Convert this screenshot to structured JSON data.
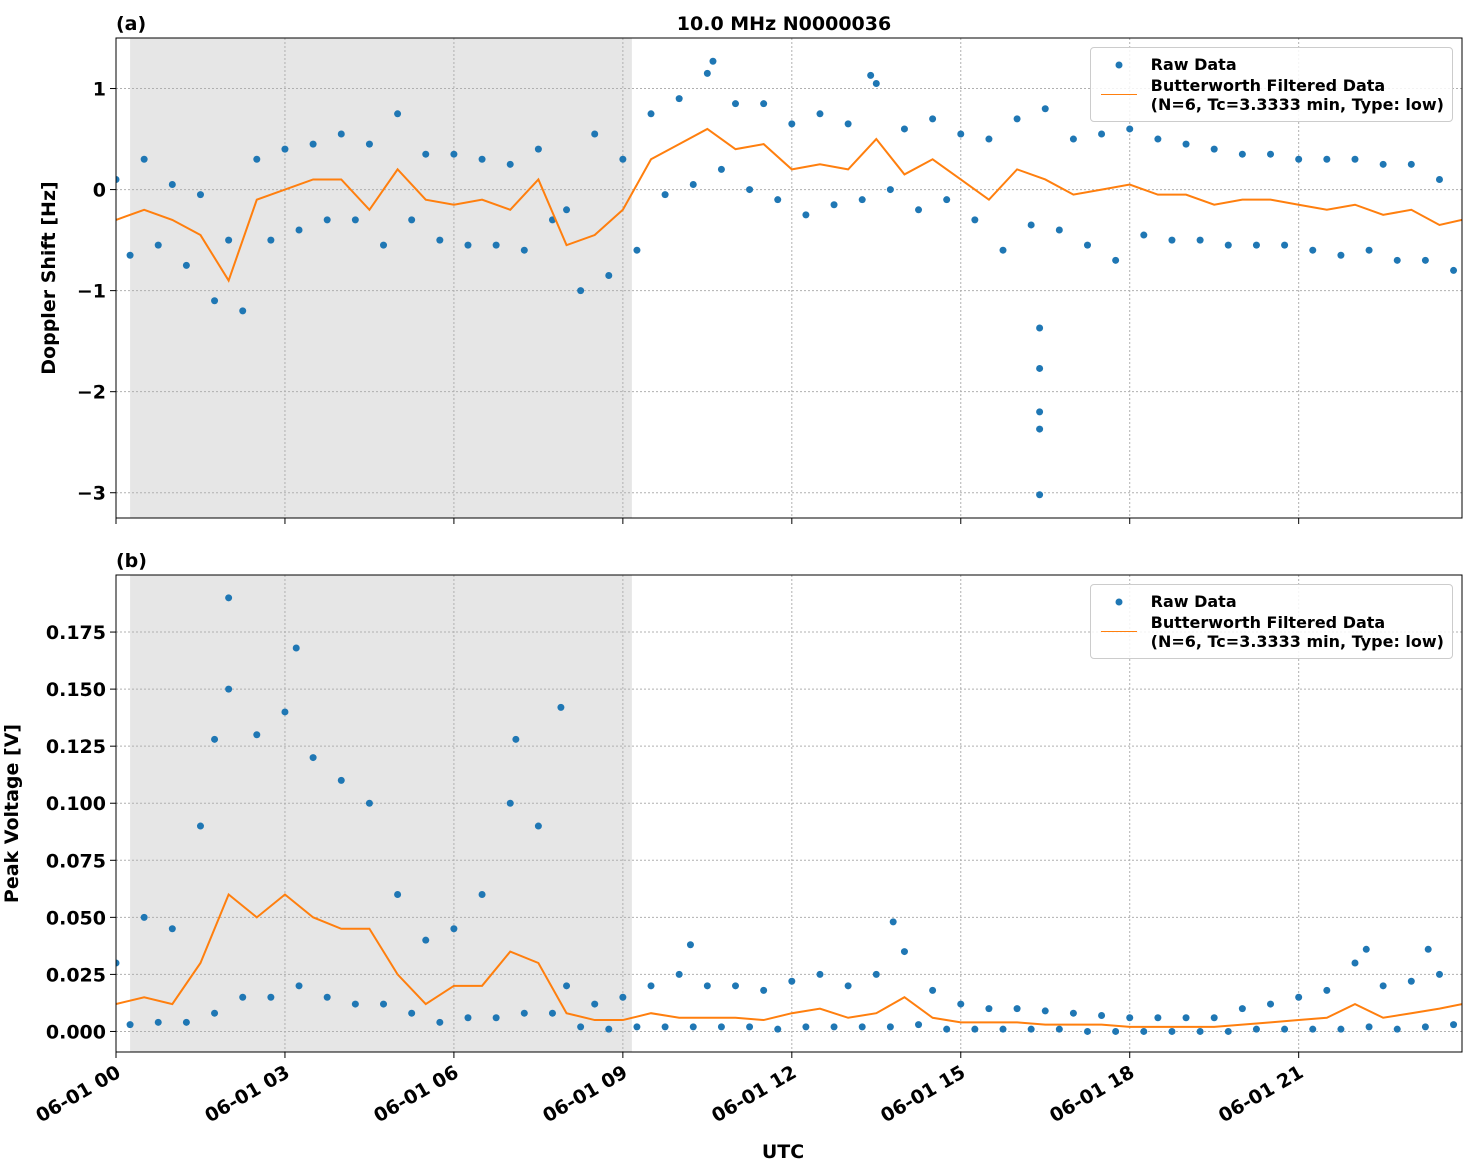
{
  "chart_data": [
    {
      "type": "line",
      "title": "10.0 MHz N0000036",
      "panel_label": "(a)",
      "ylabel": "Doppler Shift [Hz]",
      "xlim": [
        0,
        23.9
      ],
      "xticks": [
        0,
        3,
        6,
        9,
        12,
        15,
        18,
        21
      ],
      "xtick_labels_shown": false,
      "ylim": [
        -3.25,
        1.5
      ],
      "yticks": [
        {
          "value": -3,
          "label": "−3"
        },
        {
          "value": -2,
          "label": "−2"
        },
        {
          "value": -1,
          "label": "−1"
        },
        0,
        1
      ],
      "grid": true,
      "shaded_span": [
        0.25,
        9.16
      ],
      "shade_color": "#e6e6e6",
      "legend": "upper right",
      "series": [
        {
          "name": "Raw Data",
          "style": "dots",
          "color": "#1f77b4",
          "x": [
            0,
            0.25,
            0.5,
            0.75,
            1,
            1.25,
            1.5,
            1.75,
            2,
            2.25,
            2.5,
            2.75,
            3,
            3.25,
            3.5,
            3.75,
            4,
            4.25,
            4.5,
            4.75,
            5,
            5.25,
            5.5,
            5.75,
            6,
            6.25,
            6.5,
            6.75,
            7,
            7.25,
            7.5,
            7.75,
            8,
            8.25,
            8.5,
            8.75,
            9,
            9.25,
            9.5,
            9.75,
            10,
            10.25,
            10.5,
            10.75,
            11,
            11.25,
            11.5,
            11.75,
            12,
            12.25,
            12.5,
            12.75,
            13,
            13.25,
            13.5,
            13.75,
            14,
            14.25,
            14.5,
            14.75,
            15,
            15.25,
            15.5,
            15.75,
            16,
            16.25,
            16.5,
            16.75,
            17,
            17.25,
            17.5,
            17.75,
            18,
            18.25,
            18.5,
            18.75,
            19,
            19.25,
            19.5,
            19.75,
            20,
            20.25,
            20.5,
            20.75,
            21,
            21.25,
            21.5,
            21.75,
            22,
            22.25,
            22.5,
            22.75,
            23,
            23.25,
            23.5,
            23.75,
            16.4,
            16.4,
            16.4,
            16.4,
            16.4,
            10.6,
            13.4
          ],
          "values": [
            0.1,
            -0.65,
            0.3,
            -0.55,
            0.05,
            -0.75,
            -0.05,
            -1.1,
            -0.5,
            -1.2,
            0.3,
            -0.5,
            0.4,
            -0.4,
            0.45,
            -0.3,
            0.55,
            -0.3,
            0.45,
            -0.55,
            0.75,
            -0.3,
            0.35,
            -0.5,
            0.35,
            -0.55,
            0.3,
            -0.55,
            0.25,
            -0.6,
            0.4,
            -0.3,
            -0.2,
            -1.0,
            0.55,
            -0.85,
            0.3,
            -0.6,
            0.75,
            -0.05,
            0.9,
            0.05,
            1.15,
            0.2,
            0.85,
            0.0,
            0.85,
            -0.1,
            0.65,
            -0.25,
            0.75,
            -0.15,
            0.65,
            -0.1,
            1.05,
            0.0,
            0.6,
            -0.2,
            0.7,
            -0.1,
            0.55,
            -0.3,
            0.5,
            -0.6,
            0.7,
            -0.35,
            0.8,
            -0.4,
            0.5,
            -0.55,
            0.55,
            -0.7,
            0.6,
            -0.45,
            0.5,
            -0.5,
            0.45,
            -0.5,
            0.4,
            -0.55,
            0.35,
            -0.55,
            0.35,
            -0.55,
            0.3,
            -0.6,
            0.3,
            -0.65,
            0.3,
            -0.6,
            0.25,
            -0.7,
            0.25,
            -0.7,
            0.1,
            -0.8,
            -1.37,
            -1.77,
            -2.2,
            -2.37,
            -3.02,
            1.27,
            1.13
          ]
        },
        {
          "name": "Butterworth Filtered Data\n(N=6, Tc=3.3333 min, Type: low)",
          "style": "line",
          "color": "#ff7f0e",
          "x": [
            0,
            0.5,
            1,
            1.5,
            2,
            2.5,
            3,
            3.5,
            4,
            4.5,
            5,
            5.5,
            6,
            6.5,
            7,
            7.5,
            8,
            8.5,
            9,
            9.5,
            10,
            10.5,
            11,
            11.5,
            12,
            12.5,
            13,
            13.5,
            14,
            14.5,
            15,
            15.5,
            16,
            16.5,
            17,
            17.5,
            18,
            18.5,
            19,
            19.5,
            20,
            20.5,
            21,
            21.5,
            22,
            22.5,
            23,
            23.5,
            23.9
          ],
          "values": [
            -0.3,
            -0.2,
            -0.3,
            -0.45,
            -0.9,
            -0.1,
            0.0,
            0.1,
            0.1,
            -0.2,
            0.2,
            -0.1,
            -0.15,
            -0.1,
            -0.2,
            0.1,
            -0.55,
            -0.45,
            -0.2,
            0.3,
            0.45,
            0.6,
            0.4,
            0.45,
            0.2,
            0.25,
            0.2,
            0.5,
            0.15,
            0.3,
            0.1,
            -0.1,
            0.2,
            0.1,
            -0.05,
            0.0,
            0.05,
            -0.05,
            -0.05,
            -0.15,
            -0.1,
            -0.1,
            -0.15,
            -0.2,
            -0.15,
            -0.25,
            -0.2,
            -0.35,
            -0.3
          ]
        }
      ]
    },
    {
      "type": "line",
      "panel_label": "(b)",
      "ylabel": "Peak Voltage [V]",
      "xlabel": "UTC",
      "xlim": [
        0,
        23.9
      ],
      "xticks": [
        {
          "value": 0,
          "label": "06-01 00"
        },
        {
          "value": 3,
          "label": "06-01 03"
        },
        {
          "value": 6,
          "label": "06-01 06"
        },
        {
          "value": 9,
          "label": "06-01 09"
        },
        {
          "value": 12,
          "label": "06-01 12"
        },
        {
          "value": 15,
          "label": "06-01 15"
        },
        {
          "value": 18,
          "label": "06-01 18"
        },
        {
          "value": 21,
          "label": "06-01 21"
        }
      ],
      "xtick_labels_shown": true,
      "ylim": [
        -0.009,
        0.2
      ],
      "yticks": [
        {
          "value": 0,
          "label": "0.000"
        },
        0.025,
        {
          "value": 0.05,
          "label": "0.050"
        },
        0.075,
        {
          "value": 0.1,
          "label": "0.100"
        },
        0.125,
        {
          "value": 0.15,
          "label": "0.150"
        },
        0.175
      ],
      "grid": true,
      "shaded_span": [
        0.25,
        9.16
      ],
      "shade_color": "#e6e6e6",
      "legend": "upper right",
      "series": [
        {
          "name": "Raw Data",
          "style": "dots",
          "color": "#1f77b4",
          "x": [
            0,
            0.25,
            0.5,
            0.75,
            1,
            1.25,
            1.5,
            1.75,
            2,
            2.25,
            2.5,
            2.75,
            3,
            3.25,
            3.5,
            3.75,
            4,
            4.25,
            4.5,
            4.75,
            5,
            5.25,
            5.5,
            5.75,
            6,
            6.25,
            6.5,
            6.75,
            7,
            7.25,
            7.5,
            7.75,
            8,
            8.25,
            8.5,
            8.75,
            9,
            9.25,
            9.5,
            9.75,
            10,
            10.25,
            10.5,
            10.75,
            11,
            11.25,
            11.5,
            11.75,
            12,
            12.25,
            12.5,
            12.75,
            13,
            13.25,
            13.5,
            13.75,
            14,
            14.25,
            14.5,
            14.75,
            15,
            15.25,
            15.5,
            15.75,
            16,
            16.25,
            16.5,
            16.75,
            17,
            17.25,
            17.5,
            17.75,
            18,
            18.25,
            18.5,
            18.75,
            19,
            19.25,
            19.5,
            19.75,
            20,
            20.25,
            20.5,
            20.75,
            21,
            21.25,
            21.5,
            21.75,
            22,
            22.25,
            22.5,
            22.75,
            23,
            23.25,
            23.5,
            23.75,
            2.0,
            3.2,
            7.9,
            1.75,
            7.1,
            13.8,
            22.2,
            23.3,
            10.2
          ],
          "values": [
            0.03,
            0.003,
            0.05,
            0.004,
            0.045,
            0.004,
            0.09,
            0.008,
            0.15,
            0.015,
            0.13,
            0.015,
            0.14,
            0.02,
            0.12,
            0.015,
            0.11,
            0.012,
            0.1,
            0.012,
            0.06,
            0.008,
            0.04,
            0.004,
            0.045,
            0.006,
            0.06,
            0.006,
            0.1,
            0.008,
            0.09,
            0.008,
            0.02,
            0.002,
            0.012,
            0.001,
            0.015,
            0.002,
            0.02,
            0.002,
            0.025,
            0.002,
            0.02,
            0.002,
            0.02,
            0.002,
            0.018,
            0.001,
            0.022,
            0.002,
            0.025,
            0.002,
            0.02,
            0.002,
            0.025,
            0.002,
            0.035,
            0.003,
            0.018,
            0.001,
            0.012,
            0.001,
            0.01,
            0.001,
            0.01,
            0.001,
            0.009,
            0.001,
            0.008,
            0.0,
            0.007,
            0.0,
            0.006,
            0.0,
            0.006,
            0.0,
            0.006,
            0.0,
            0.006,
            0.0,
            0.01,
            0.001,
            0.012,
            0.001,
            0.015,
            0.001,
            0.018,
            0.001,
            0.03,
            0.002,
            0.02,
            0.001,
            0.022,
            0.002,
            0.025,
            0.003,
            0.19,
            0.168,
            0.142,
            0.128,
            0.128,
            0.048,
            0.036,
            0.036,
            0.038
          ]
        },
        {
          "name": "Butterworth Filtered Data\n(N=6, Tc=3.3333 min, Type: low)",
          "style": "line",
          "color": "#ff7f0e",
          "x": [
            0,
            0.5,
            1,
            1.5,
            2,
            2.5,
            3,
            3.5,
            4,
            4.5,
            5,
            5.5,
            6,
            6.5,
            7,
            7.5,
            8,
            8.5,
            9,
            9.5,
            10,
            10.5,
            11,
            11.5,
            12,
            12.5,
            13,
            13.5,
            14,
            14.5,
            15,
            15.5,
            16,
            16.5,
            17,
            17.5,
            18,
            18.5,
            19,
            19.5,
            20,
            20.5,
            21,
            21.5,
            22,
            22.5,
            23,
            23.5,
            23.9
          ],
          "values": [
            0.012,
            0.015,
            0.012,
            0.03,
            0.06,
            0.05,
            0.06,
            0.05,
            0.045,
            0.045,
            0.025,
            0.012,
            0.02,
            0.02,
            0.035,
            0.03,
            0.008,
            0.005,
            0.005,
            0.008,
            0.006,
            0.006,
            0.006,
            0.005,
            0.008,
            0.01,
            0.006,
            0.008,
            0.015,
            0.006,
            0.004,
            0.004,
            0.004,
            0.003,
            0.003,
            0.003,
            0.002,
            0.002,
            0.002,
            0.002,
            0.003,
            0.004,
            0.005,
            0.006,
            0.012,
            0.006,
            0.008,
            0.01,
            0.012
          ]
        }
      ]
    }
  ]
}
